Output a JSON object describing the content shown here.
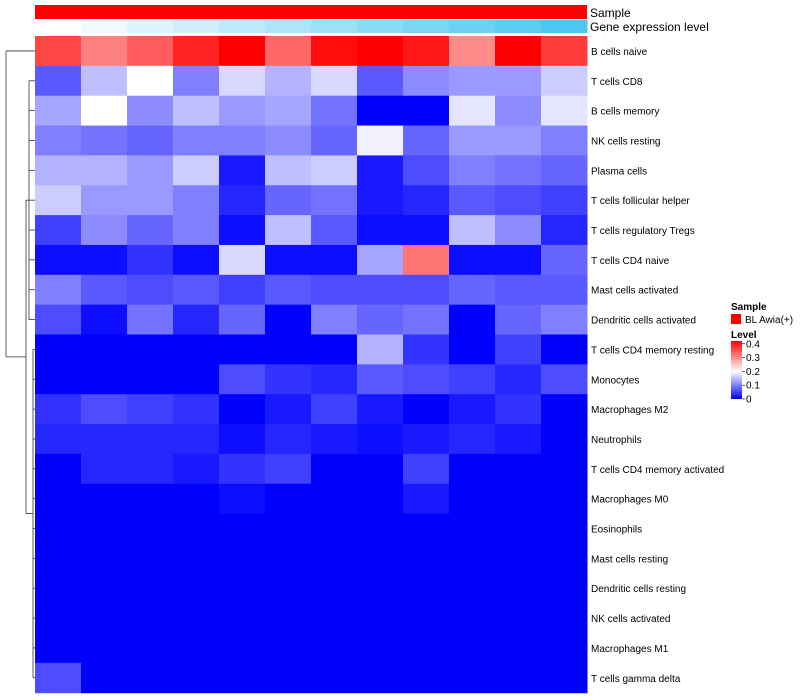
{
  "chart_data": {
    "type": "heatmap",
    "annotation_tracks": [
      {
        "name": "Sample"
      },
      {
        "name": "Gene expression level"
      }
    ],
    "rows": [
      "B cells naive",
      "T cells CD8",
      "B cells memory",
      "NK cells resting",
      "Plasma cells",
      "T cells follicular helper",
      "T cells regulatory  Tregs",
      "T cells CD4 naive",
      "Mast cells activated",
      "Dendritic cells activated",
      "T cells CD4 memory resting",
      "Monocytes",
      "Macrophages M2",
      "Neutrophils",
      "T cells CD4 memory activated",
      "Macrophages M0",
      "Eosinophils",
      "Mast cells resting",
      "Dendritic cells resting",
      "NK cells activated",
      "Macrophages M1",
      "T cells gamma delta"
    ],
    "values": [
      [
        0.36,
        0.31,
        0.34,
        0.39,
        0.42,
        0.33,
        0.41,
        0.43,
        0.4,
        0.3,
        0.43,
        0.37
      ],
      [
        0.07,
        0.15,
        0.2,
        0.1,
        0.17,
        0.14,
        0.17,
        0.07,
        0.11,
        0.12,
        0.12,
        0.16
      ],
      [
        0.13,
        0.2,
        0.11,
        0.15,
        0.12,
        0.13,
        0.09,
        0.0,
        0.0,
        0.18,
        0.11,
        0.18
      ],
      [
        0.1,
        0.09,
        0.08,
        0.1,
        0.1,
        0.11,
        0.08,
        0.19,
        0.08,
        0.12,
        0.12,
        0.1
      ],
      [
        0.14,
        0.14,
        0.12,
        0.16,
        0.02,
        0.15,
        0.16,
        0.02,
        0.06,
        0.1,
        0.09,
        0.08
      ],
      [
        0.16,
        0.12,
        0.12,
        0.1,
        0.03,
        0.08,
        0.09,
        0.02,
        0.03,
        0.07,
        0.06,
        0.05
      ],
      [
        0.05,
        0.11,
        0.08,
        0.1,
        0.01,
        0.15,
        0.07,
        0.01,
        0.01,
        0.15,
        0.11,
        0.03
      ],
      [
        0.01,
        0.01,
        0.04,
        0.01,
        0.17,
        0.01,
        0.01,
        0.13,
        0.32,
        0.01,
        0.01,
        0.08
      ],
      [
        0.1,
        0.07,
        0.06,
        0.07,
        0.05,
        0.07,
        0.06,
        0.06,
        0.06,
        0.08,
        0.07,
        0.07
      ],
      [
        0.06,
        0.01,
        0.09,
        0.03,
        0.08,
        0.0,
        0.1,
        0.08,
        0.09,
        0.0,
        0.08,
        0.1
      ],
      [
        0.0,
        0.0,
        0.0,
        0.0,
        0.0,
        0.0,
        0.0,
        0.14,
        0.04,
        0.0,
        0.05,
        0.0
      ],
      [
        0.0,
        0.0,
        0.0,
        0.0,
        0.06,
        0.04,
        0.03,
        0.07,
        0.06,
        0.05,
        0.03,
        0.06
      ],
      [
        0.04,
        0.06,
        0.05,
        0.04,
        0.0,
        0.02,
        0.05,
        0.02,
        0.0,
        0.02,
        0.04,
        0.0
      ],
      [
        0.03,
        0.03,
        0.03,
        0.03,
        0.01,
        0.03,
        0.02,
        0.01,
        0.02,
        0.03,
        0.02,
        0.0
      ],
      [
        0.0,
        0.03,
        0.03,
        0.02,
        0.04,
        0.05,
        0.0,
        0.0,
        0.05,
        0.0,
        0.0,
        0.0
      ],
      [
        0.0,
        0.0,
        0.0,
        0.0,
        0.01,
        0.0,
        0.0,
        0.0,
        0.02,
        0.0,
        0.0,
        0.0
      ],
      [
        0.0,
        0.0,
        0.0,
        0.0,
        0.0,
        0.0,
        0.0,
        0.0,
        0.0,
        0.0,
        0.0,
        0.0
      ],
      [
        0.0,
        0.0,
        0.0,
        0.0,
        0.0,
        0.0,
        0.0,
        0.0,
        0.0,
        0.0,
        0.0,
        0.0
      ],
      [
        0.0,
        0.0,
        0.0,
        0.0,
        0.0,
        0.0,
        0.0,
        0.0,
        0.0,
        0.0,
        0.0,
        0.0
      ],
      [
        0.0,
        0.0,
        0.0,
        0.0,
        0.0,
        0.0,
        0.0,
        0.0,
        0.0,
        0.0,
        0.0,
        0.0
      ],
      [
        0.0,
        0.0,
        0.0,
        0.0,
        0.0,
        0.0,
        0.0,
        0.0,
        0.0,
        0.0,
        0.0,
        0.0
      ],
      [
        0.06,
        0.0,
        0.0,
        0.0,
        0.0,
        0.0,
        0.0,
        0.0,
        0.0,
        0.0,
        0.0,
        0.0
      ]
    ],
    "gene_expression_track": [
      0.0,
      0.05,
      0.1,
      0.15,
      0.2,
      0.25,
      0.3,
      0.35,
      0.4,
      0.45,
      0.5,
      0.55
    ],
    "legend": {
      "placement": "right",
      "sample_title": "Sample",
      "sample_label": "BL Awia(+)",
      "sample_color": "#ff0000",
      "level_title": "Level",
      "level_ticks": [
        "0.4",
        "0.3",
        "0.2",
        "0.1",
        "0"
      ],
      "level_tick_values": [
        0.4,
        0.3,
        0.2,
        0.1,
        0
      ]
    },
    "color_scale": {
      "low": "#0000ff",
      "mid": "#ffffff",
      "high": "#ff0000",
      "domain": [
        0,
        0.2,
        0.42
      ]
    },
    "track_colors": {
      "low": "#ffffff",
      "high": "#4ec6ef"
    },
    "dendrogram": "rows",
    "grid": false
  }
}
